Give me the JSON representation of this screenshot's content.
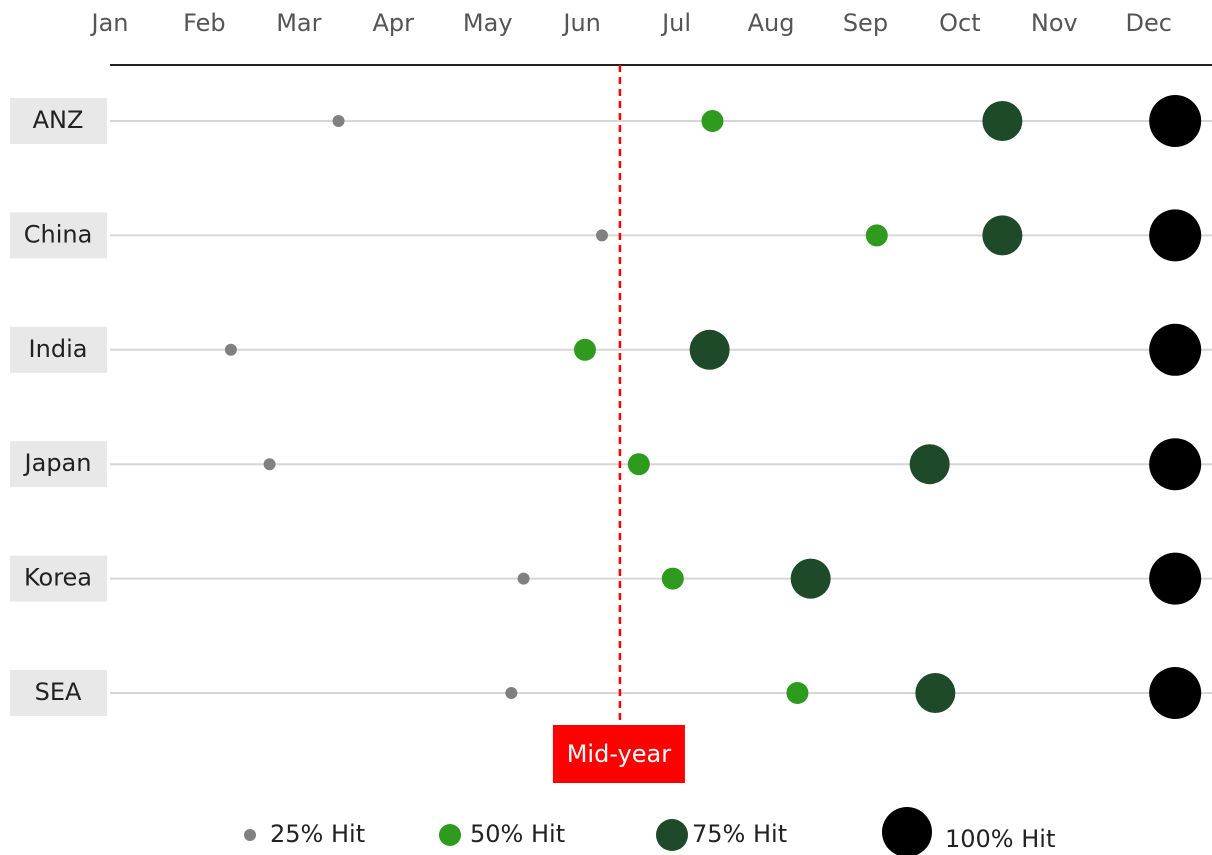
{
  "chart_data": {
    "type": "dot",
    "categories": [
      "ANZ",
      "China",
      "India",
      "Japan",
      "Korea",
      "SEA"
    ],
    "series": [
      {
        "name": "25% Hit",
        "color": "#808080",
        "values": [
          3.42,
          6.21,
          2.28,
          2.69,
          5.38,
          5.25
        ]
      },
      {
        "name": "50% Hit",
        "color": "#2e9a1e",
        "values": [
          7.38,
          9.12,
          6.03,
          6.6,
          6.96,
          8.28
        ]
      },
      {
        "name": "75% Hit",
        "color": "#1e4a2a",
        "values": [
          10.45,
          10.45,
          7.35,
          9.68,
          8.42,
          9.74
        ]
      },
      {
        "name": "100% Hit",
        "color": "#000000",
        "values": [
          12.28,
          12.28,
          12.28,
          12.28,
          12.28,
          12.28
        ]
      }
    ],
    "xlim": [
      1,
      12.67
    ],
    "xticks": [
      {
        "value": 1,
        "label": "Jan"
      },
      {
        "value": 2,
        "label": "Feb"
      },
      {
        "value": 3,
        "label": "Mar"
      },
      {
        "value": 4,
        "label": "Apr"
      },
      {
        "value": 5,
        "label": "May"
      },
      {
        "value": 6,
        "label": "Jun"
      },
      {
        "value": 7,
        "label": "Jul"
      },
      {
        "value": 8,
        "label": "Aug"
      },
      {
        "value": 9,
        "label": "Sep"
      },
      {
        "value": 10,
        "label": "Oct"
      },
      {
        "value": 11,
        "label": "Nov"
      },
      {
        "value": 12,
        "label": "Dec"
      }
    ],
    "annotation": {
      "text": "Mid-year",
      "x": 6.4,
      "color": "#ff0000"
    }
  }
}
